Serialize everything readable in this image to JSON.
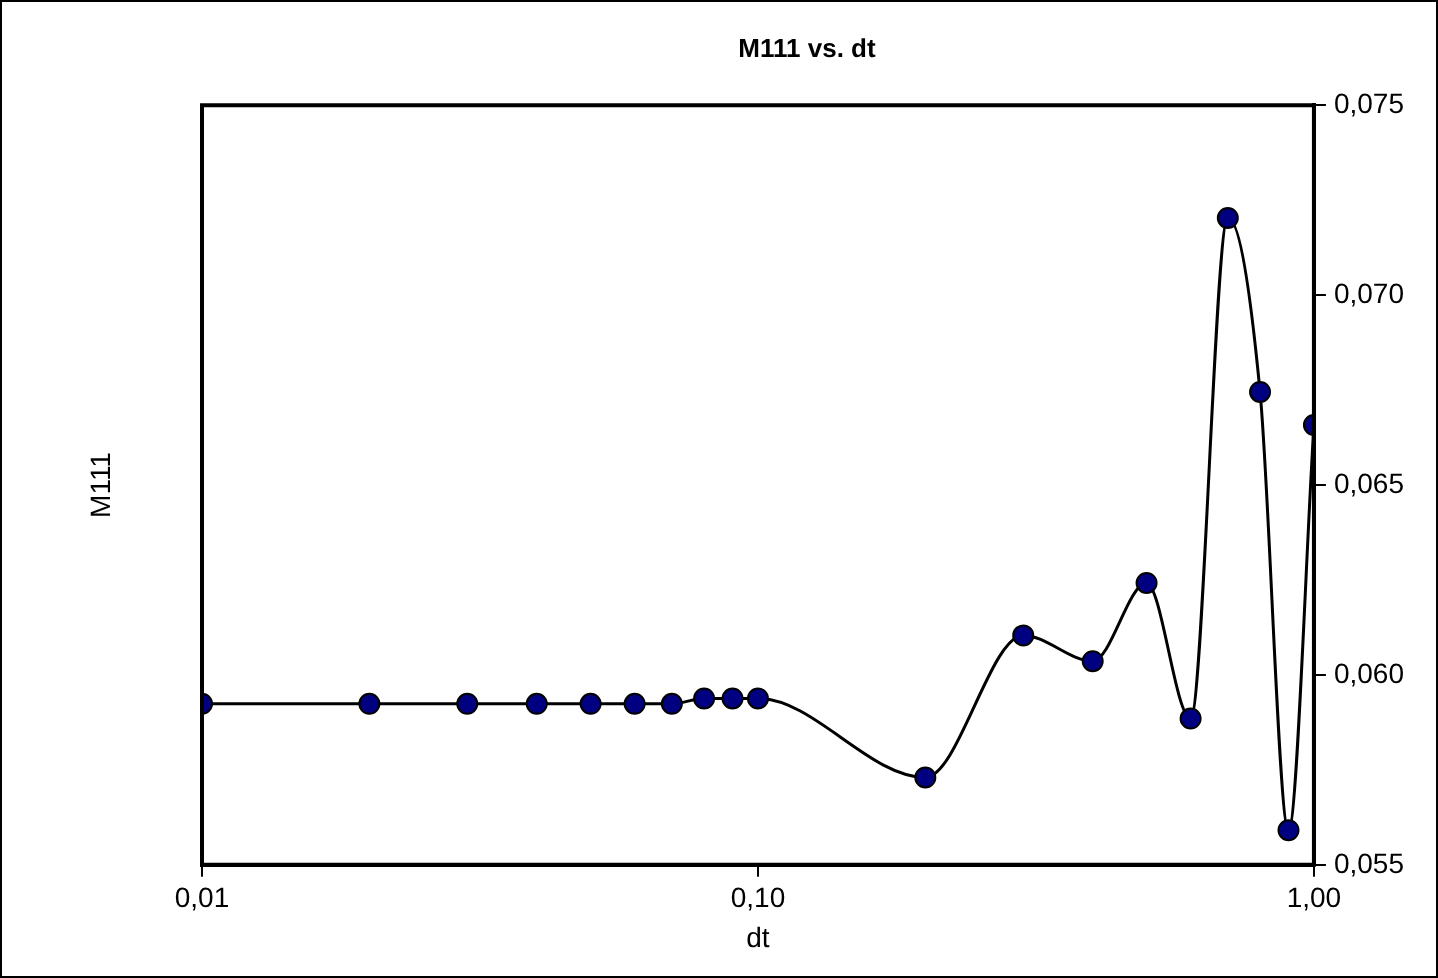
{
  "chart_data": {
    "type": "line",
    "title": "M111 vs. dt",
    "xlabel": "dt",
    "ylabel": "M111",
    "x": [
      0.01,
      0.02,
      0.03,
      0.04,
      0.05,
      0.06,
      0.07,
      0.08,
      0.09,
      0.1,
      0.2,
      0.3,
      0.4,
      0.5,
      0.6,
      0.7,
      0.8,
      0.9,
      1.0
    ],
    "series": [
      {
        "color": "#000080",
        "values": [
          0.05924,
          0.05924,
          0.05924,
          0.05924,
          0.05924,
          0.05924,
          0.05924,
          0.05938,
          0.05938,
          0.05938,
          0.0573,
          0.06104,
          0.06036,
          0.06242,
          0.05885,
          0.07203,
          0.06745,
          0.05591,
          0.06658
        ]
      }
    ],
    "log": "x",
    "xlim": [
      0.01,
      1
    ],
    "xticks": [
      {
        "value": 0.01,
        "label": "0,01"
      },
      {
        "value": 0.1,
        "label": "0,10"
      },
      {
        "value": 1,
        "label": "1,00"
      }
    ],
    "ylim": [
      0.055,
      0.075
    ],
    "yticks": [
      {
        "value": 0.055,
        "label": "0,055"
      },
      {
        "value": 0.06,
        "label": "0,060"
      },
      {
        "value": 0.065,
        "label": "0,065"
      },
      {
        "value": 0.07,
        "label": "0,070"
      },
      {
        "value": 0.075,
        "label": "0,075"
      }
    ],
    "grid": false,
    "legend": false,
    "marker": "circle",
    "line_style": "solid"
  }
}
